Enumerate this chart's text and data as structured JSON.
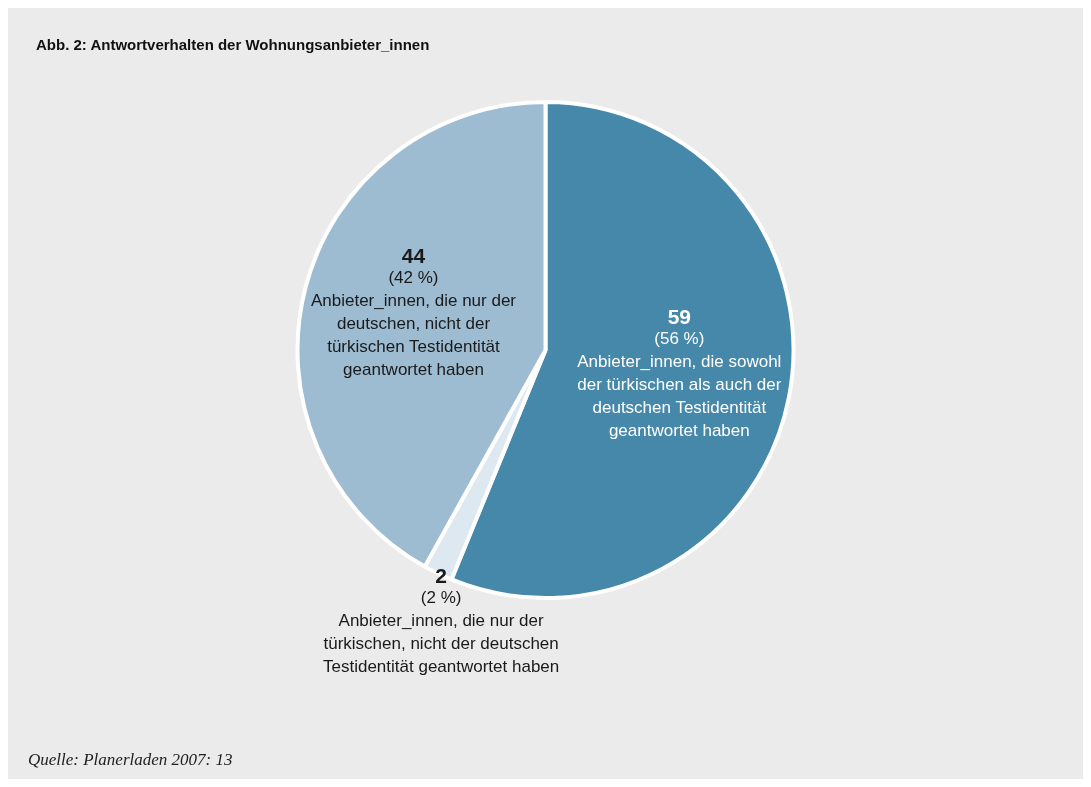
{
  "chart_data": {
    "type": "pie",
    "title": "Abb. 2: Antwortverhalten der Wohnungsanbieter_innen",
    "categories": [
      "Anbieter_innen, die sowohl der türkischen als auch der deutschen Testidentität geantwortet haben",
      "Anbieter_innen, die nur der türkischen, nicht der deutschen Testidentität geantwortet haben",
      "Anbieter_innen, die nur der deutschen, nicht der türkischen Testidentität geantwortet haben"
    ],
    "values": [
      59,
      2,
      44
    ],
    "colors": [
      "#4688a9",
      "#dde8f0",
      "#9dbcd2"
    ],
    "value_labels": [
      "59\n(56 %)",
      "2\n(2 %)",
      "44\n(42 %)"
    ],
    "legend": false,
    "annotations": [
      "Quelle: Planerladen 2007: 13"
    ]
  }
}
